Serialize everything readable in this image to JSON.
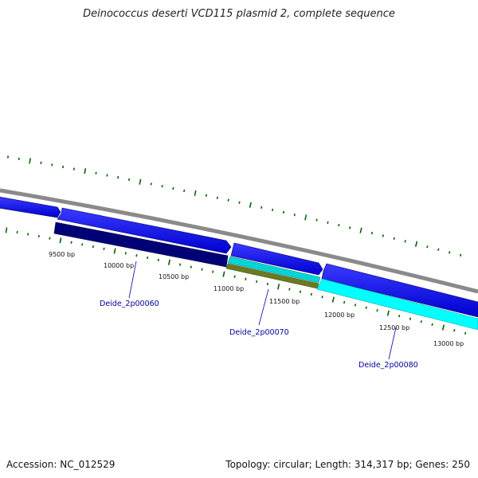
{
  "title": "Deinococcus deserti VCD115 plasmid 2, complete sequence",
  "footer": {
    "accession": "Accession: NC_012529",
    "summary": "Topology: circular; Length: 314,317 bp; Genes: 250"
  },
  "colors": {
    "backbone": "#8a8a8a",
    "forward_gene": "#0000ee",
    "reverse_gene": "#000077",
    "cds_cyan": "#00dddd",
    "rna_olive": "#6b7a20",
    "bright_cyan": "#00ffff",
    "tick_green": "#006400",
    "label_blue": "#000099"
  },
  "tick_labels": [
    "9500 bp",
    "10000 bp",
    "10500 bp",
    "11000 bp",
    "11500 bp",
    "12000 bp",
    "12500 bp",
    "13000 bp"
  ],
  "gene_labels": [
    "Deide_2p00060",
    "Deide_2p00070",
    "Deide_2p00080"
  ]
}
